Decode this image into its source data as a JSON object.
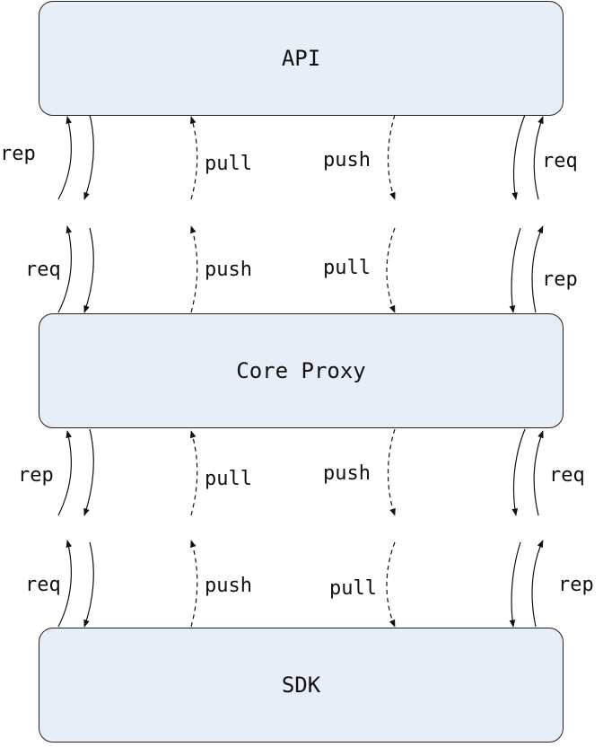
{
  "nodes": {
    "api": "API",
    "core_proxy": "Core Proxy",
    "sdk": "SDK"
  },
  "connections": {
    "api_to_proxy": {
      "upper": {
        "left_solid": "rep",
        "left_dashed": "pull",
        "right_dashed": "push",
        "right_solid": "req"
      },
      "lower": {
        "left_solid": "req",
        "left_dashed": "push",
        "right_dashed": "pull",
        "right_solid": "rep"
      }
    },
    "proxy_to_sdk": {
      "upper": {
        "left_solid": "rep",
        "left_dashed": "pull",
        "right_dashed": "push",
        "right_solid": "req"
      },
      "lower": {
        "left_solid": "req",
        "left_dashed": "push",
        "right_dashed": "pull",
        "right_solid": "rep"
      }
    }
  }
}
